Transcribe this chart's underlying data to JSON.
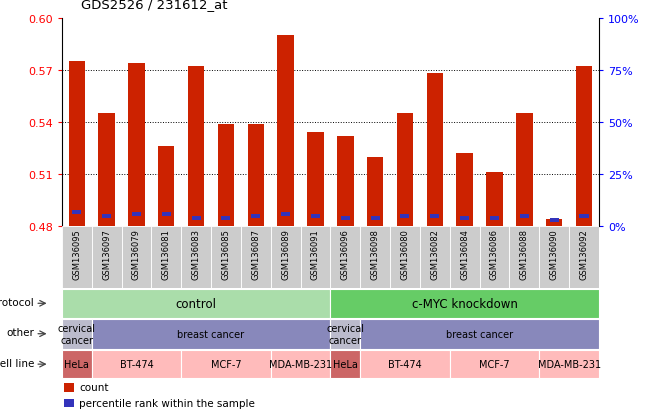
{
  "title": "GDS2526 / 231612_at",
  "samples": [
    "GSM136095",
    "GSM136097",
    "GSM136079",
    "GSM136081",
    "GSM136083",
    "GSM136085",
    "GSM136087",
    "GSM136089",
    "GSM136091",
    "GSM136096",
    "GSM136098",
    "GSM136080",
    "GSM136082",
    "GSM136084",
    "GSM136086",
    "GSM136088",
    "GSM136090",
    "GSM136092"
  ],
  "red_values": [
    0.575,
    0.545,
    0.574,
    0.526,
    0.572,
    0.539,
    0.539,
    0.59,
    0.534,
    0.532,
    0.52,
    0.545,
    0.568,
    0.522,
    0.511,
    0.545,
    0.484,
    0.572
  ],
  "blue_pct": [
    7,
    5,
    6,
    6,
    4,
    4,
    5,
    6,
    5,
    4,
    4,
    5,
    5,
    4,
    4,
    5,
    3,
    5
  ],
  "ymin": 0.48,
  "ymax": 0.6,
  "yticks": [
    0.48,
    0.51,
    0.54,
    0.57,
    0.6
  ],
  "right_yticks_pct": [
    0,
    25,
    50,
    75,
    100
  ],
  "bar_color": "#cc2200",
  "blue_color": "#3333bb",
  "protocol_items": [
    {
      "text": "control",
      "start": 0,
      "end": 9,
      "color": "#aaddaa"
    },
    {
      "text": "c-MYC knockdown",
      "start": 9,
      "end": 18,
      "color": "#66cc66"
    }
  ],
  "other_items": [
    {
      "text": "cervical\ncancer",
      "start": 0,
      "end": 1,
      "color": "#bbbbcc"
    },
    {
      "text": "breast cancer",
      "start": 1,
      "end": 9,
      "color": "#8888bb"
    },
    {
      "text": "cervical\ncancer",
      "start": 9,
      "end": 10,
      "color": "#bbbbcc"
    },
    {
      "text": "breast cancer",
      "start": 10,
      "end": 18,
      "color": "#8888bb"
    }
  ],
  "cell_line_items": [
    {
      "text": "HeLa",
      "start": 0,
      "end": 1,
      "color": "#cc6666"
    },
    {
      "text": "BT-474",
      "start": 1,
      "end": 4,
      "color": "#ffbbbb"
    },
    {
      "text": "MCF-7",
      "start": 4,
      "end": 7,
      "color": "#ffbbbb"
    },
    {
      "text": "MDA-MB-231",
      "start": 7,
      "end": 9,
      "color": "#ffbbbb"
    },
    {
      "text": "HeLa",
      "start": 9,
      "end": 10,
      "color": "#cc6666"
    },
    {
      "text": "BT-474",
      "start": 10,
      "end": 13,
      "color": "#ffbbbb"
    },
    {
      "text": "MCF-7",
      "start": 13,
      "end": 16,
      "color": "#ffbbbb"
    },
    {
      "text": "MDA-MB-231",
      "start": 16,
      "end": 18,
      "color": "#ffbbbb"
    }
  ],
  "legend_items": [
    {
      "label": "count",
      "color": "#cc2200"
    },
    {
      "label": "percentile rank within the sample",
      "color": "#3333bb"
    }
  ],
  "xtick_bg": "#cccccc"
}
